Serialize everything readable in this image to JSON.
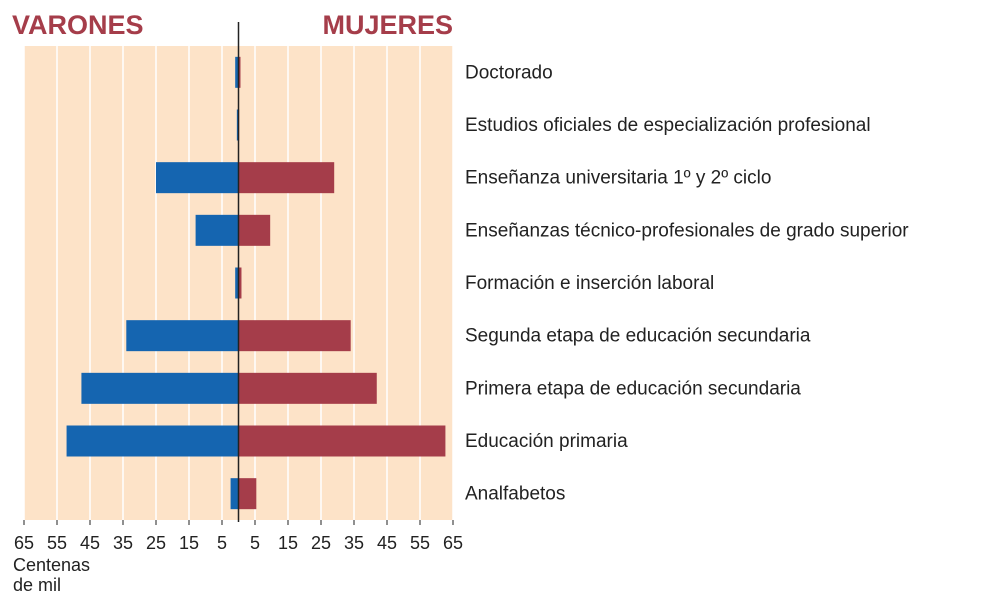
{
  "chart_data": {
    "type": "butterfly-bar",
    "categories": [
      "Doctorado",
      "Estudios oficiales de especialización profesional",
      "Enseñanza universitaria 1º y 2º ciclo",
      "Enseñanzas técnico-profesionales de grado superior",
      "Formación e inserción laboral",
      "Segunda etapa de educación secundaria",
      "Primera etapa de educación secundaria",
      "Educación primaria",
      "Analfabetos"
    ],
    "series": [
      {
        "name": "VARONES",
        "color": "#1565b0",
        "values": [
          -1,
          -0.5,
          -25,
          -13,
          -1,
          -34,
          -47.6,
          -52.1,
          -2.4
        ]
      },
      {
        "name": "MUJERES",
        "color": "#a53d4a",
        "values": [
          0.6,
          0.2,
          29,
          9.6,
          0.9,
          34,
          41.9,
          62.7,
          5.4
        ]
      }
    ],
    "xlabel": "Centenas de mil",
    "xlim": [
      -65,
      65
    ],
    "xticks": [
      {
        "value": -65,
        "label": "65"
      },
      {
        "value": -55,
        "label": "55"
      },
      {
        "value": -45,
        "label": "45"
      },
      {
        "value": -35,
        "label": "35"
      },
      {
        "value": -25,
        "label": "25"
      },
      {
        "value": -15,
        "label": "15"
      },
      {
        "value": -5,
        "label": "5"
      },
      5,
      15,
      25,
      35,
      45,
      55,
      65
    ],
    "grid": true
  }
}
